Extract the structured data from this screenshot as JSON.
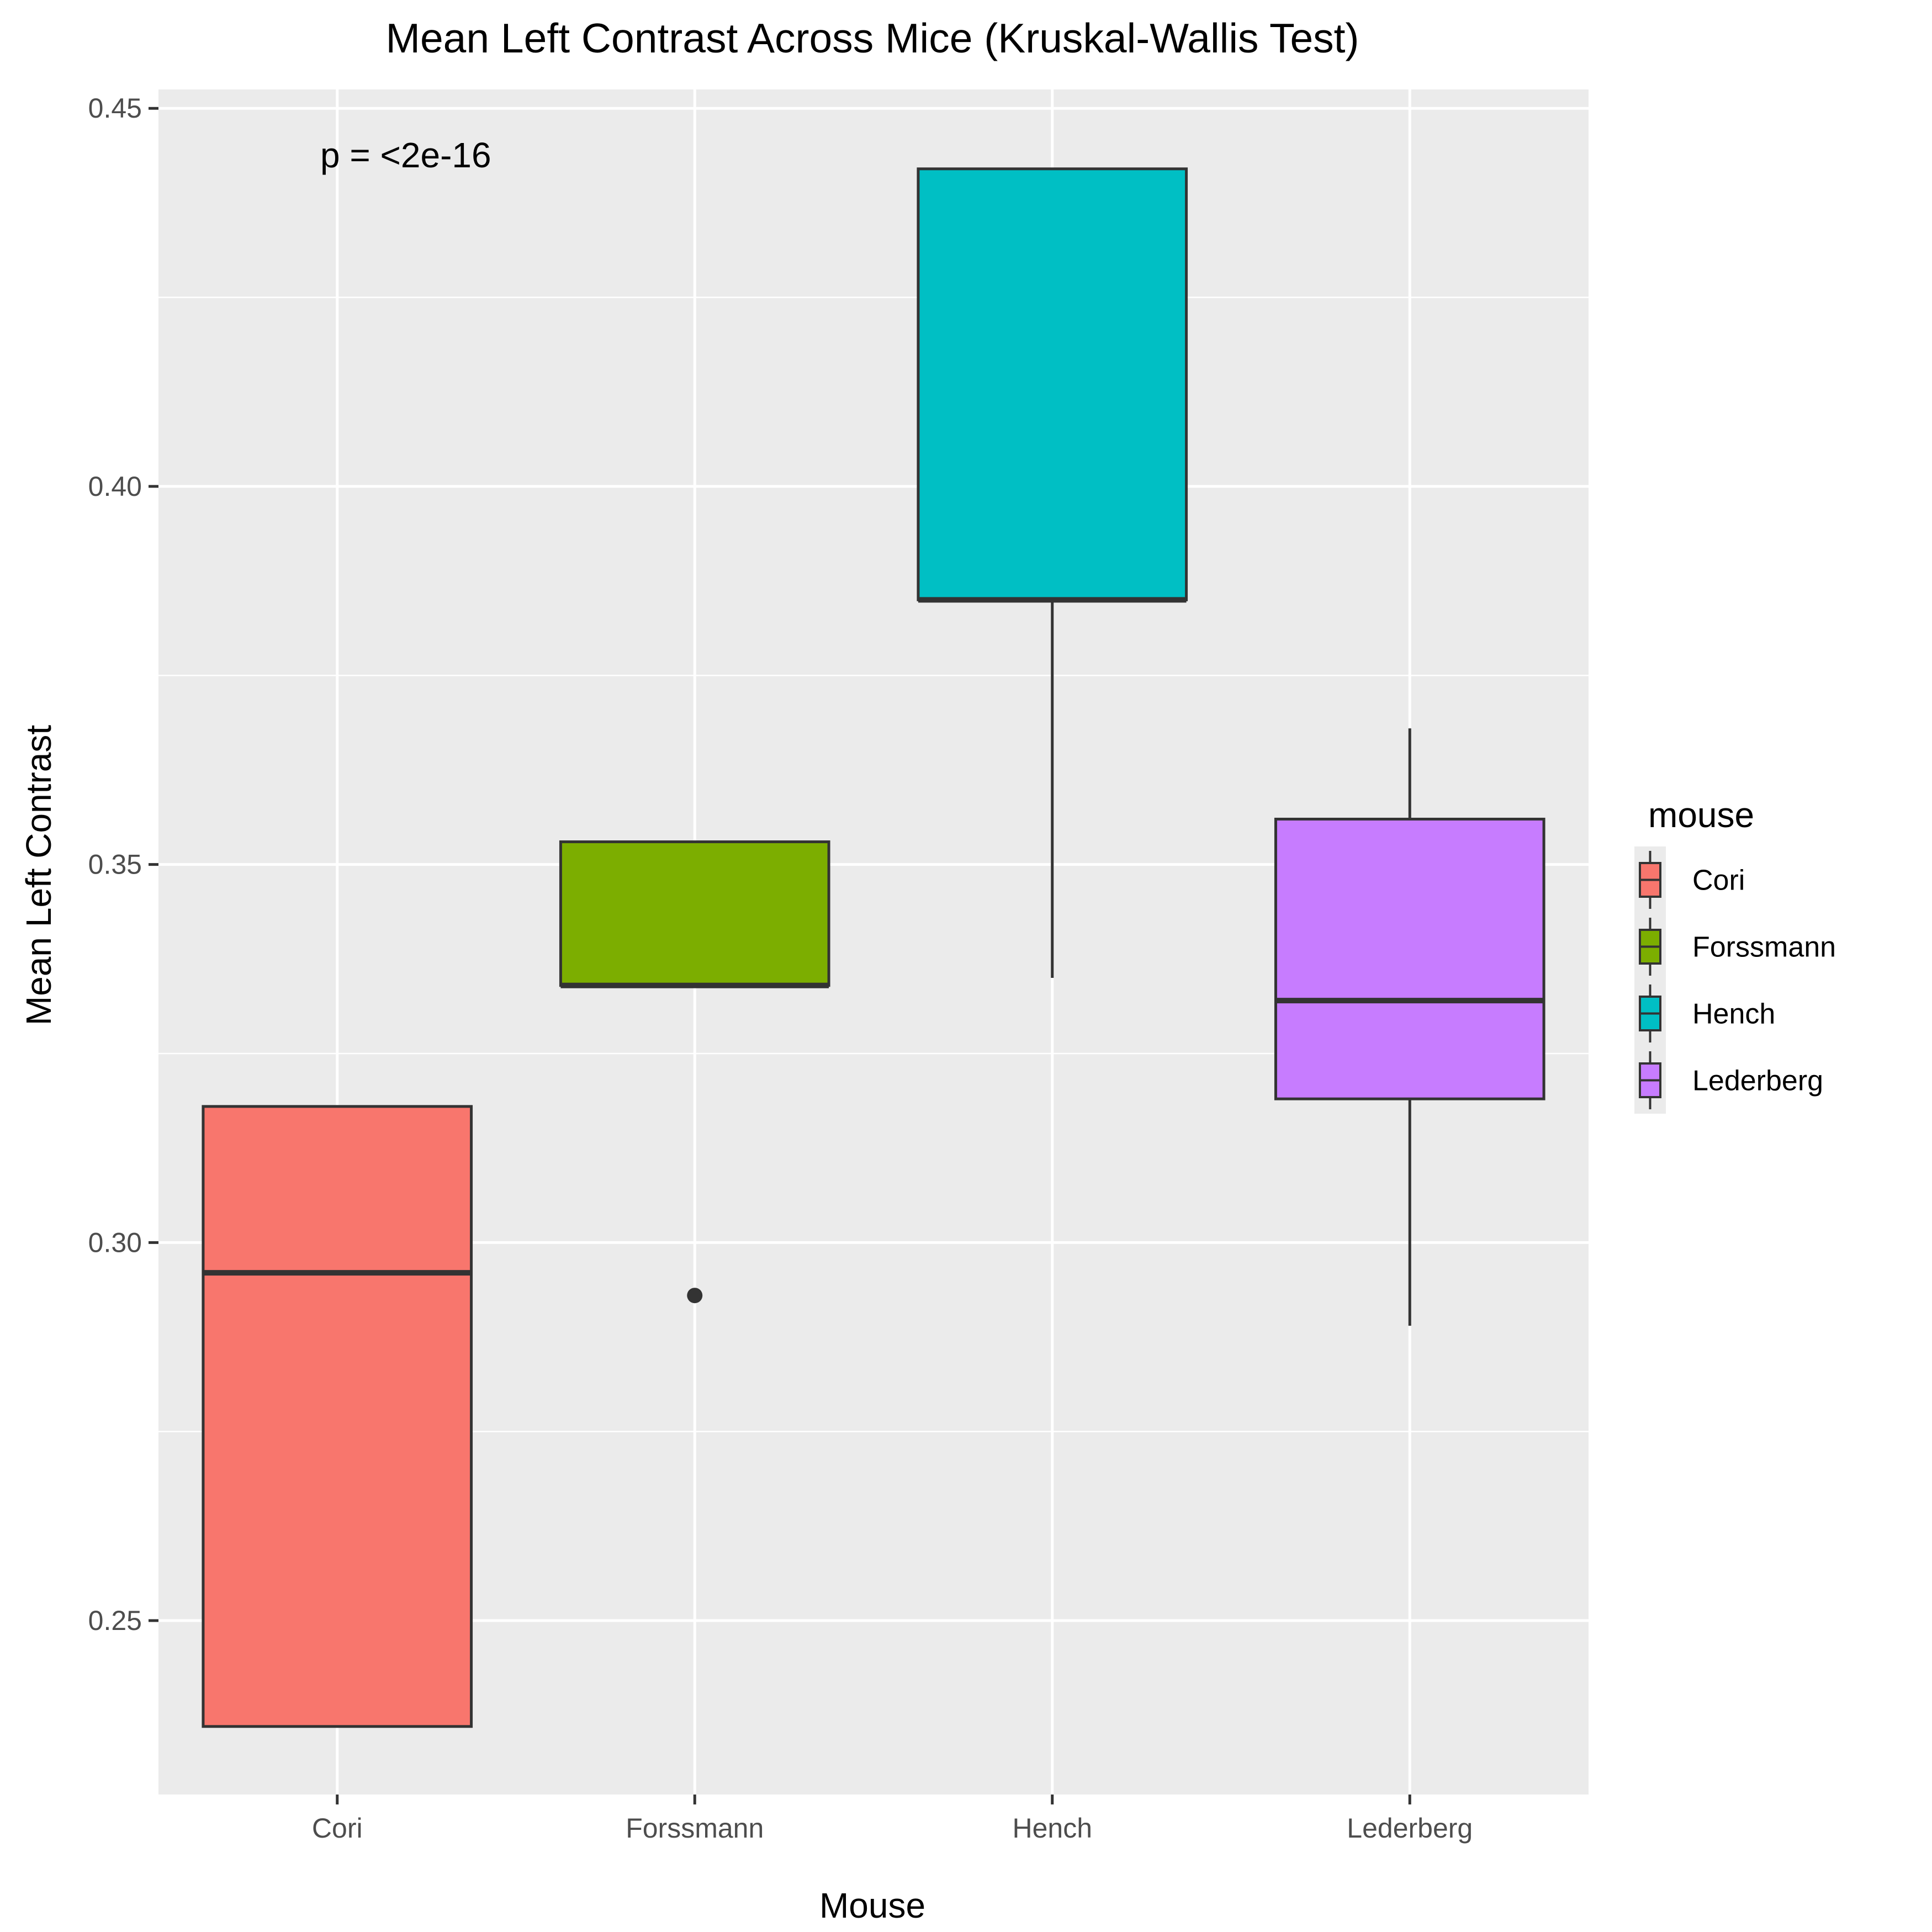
{
  "chart_data": {
    "type": "boxplot",
    "title": "Mean Left Contrast Across Mice (Kruskal-Wallis Test)",
    "xlabel": "Mouse",
    "ylabel": "Mean Left Contrast",
    "ylim": [
      0.227,
      0.4525
    ],
    "yticks": [
      0.25,
      0.3,
      0.35,
      0.4,
      0.45
    ],
    "ytick_labels": [
      "0.25",
      "0.30",
      "0.35",
      "0.40",
      "0.45"
    ],
    "grid": true,
    "categories": [
      "Cori",
      "Forssmann",
      "Hench",
      "Lederberg"
    ],
    "boxes": [
      {
        "name": "Cori",
        "color": "#F8766D",
        "whisker_low": 0.236,
        "q1": 0.236,
        "median": 0.296,
        "q3": 0.318,
        "whisker_high": 0.318,
        "outliers": []
      },
      {
        "name": "Forssmann",
        "color": "#7CAE00",
        "whisker_low": 0.334,
        "q1": 0.334,
        "median": 0.334,
        "q3": 0.353,
        "whisker_high": 0.353,
        "outliers": [
          0.293
        ]
      },
      {
        "name": "Hench",
        "color": "#00BFC4",
        "whisker_low": 0.335,
        "q1": 0.385,
        "median": 0.385,
        "q3": 0.442,
        "whisker_high": 0.442,
        "outliers": []
      },
      {
        "name": "Lederberg",
        "color": "#C77CFF",
        "whisker_low": 0.289,
        "q1": 0.319,
        "median": 0.332,
        "q3": 0.356,
        "whisker_high": 0.368,
        "outliers": []
      }
    ],
    "annotation": "p = <2e-16",
    "legend": {
      "title": "mouse",
      "position": "right",
      "entries": [
        "Cori",
        "Forssmann",
        "Hench",
        "Lederberg"
      ]
    }
  }
}
